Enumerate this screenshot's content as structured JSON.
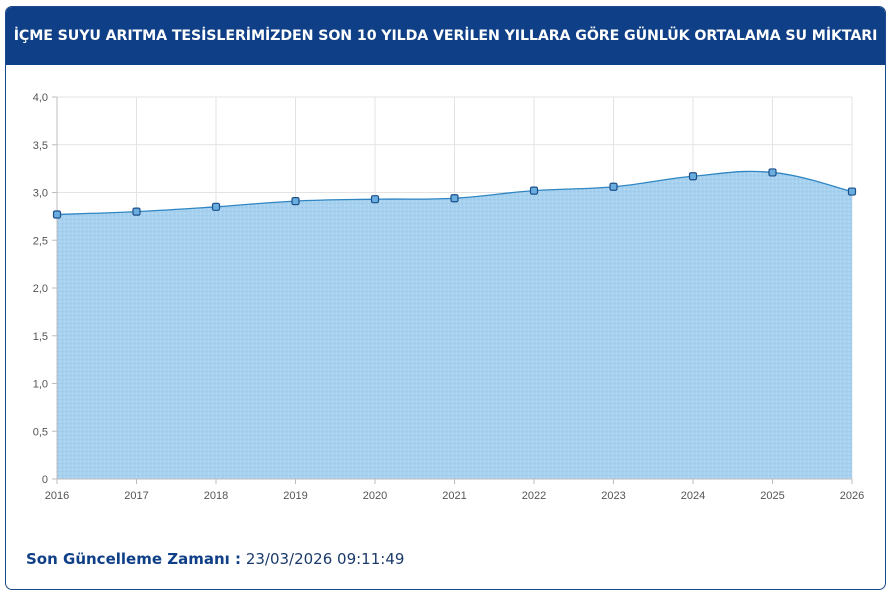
{
  "header": {
    "title": "İÇME SUYU ARITMA TESİSLERİMİZDEN SON 10 YILDA VERİLEN YILLARA GÖRE GÜNLÜK ORTALAMA SU MİKTARI"
  },
  "footer": {
    "label": "Son Güncelleme Zamanı :",
    "value": "23/03/2026 09:11:49"
  },
  "chart_data": {
    "type": "area",
    "categories": [
      "2016",
      "2017",
      "2018",
      "2019",
      "2020",
      "2021",
      "2022",
      "2023",
      "2024",
      "2025",
      "2026"
    ],
    "values": [
      2.77,
      2.8,
      2.85,
      2.91,
      2.93,
      2.94,
      3.02,
      3.06,
      3.17,
      3.21,
      3.01
    ],
    "ylim": [
      0,
      4
    ],
    "yticks": [
      0,
      0.5,
      1,
      1.5,
      2,
      2.5,
      3,
      3.5,
      4
    ],
    "ytick_labels": [
      "0",
      "0,5",
      "1,0",
      "1,5",
      "2,0",
      "2,5",
      "3,0",
      "3,5",
      "4,0"
    ],
    "grid": true,
    "colors": {
      "fill": "#a9d3ef",
      "line": "#2f86c3",
      "marker_fill": "#6aaee0",
      "marker_stroke": "#1d4f8a",
      "grid": "#e3e3e3",
      "axis": "#bdbdbd",
      "tick_text": "#555555"
    }
  }
}
